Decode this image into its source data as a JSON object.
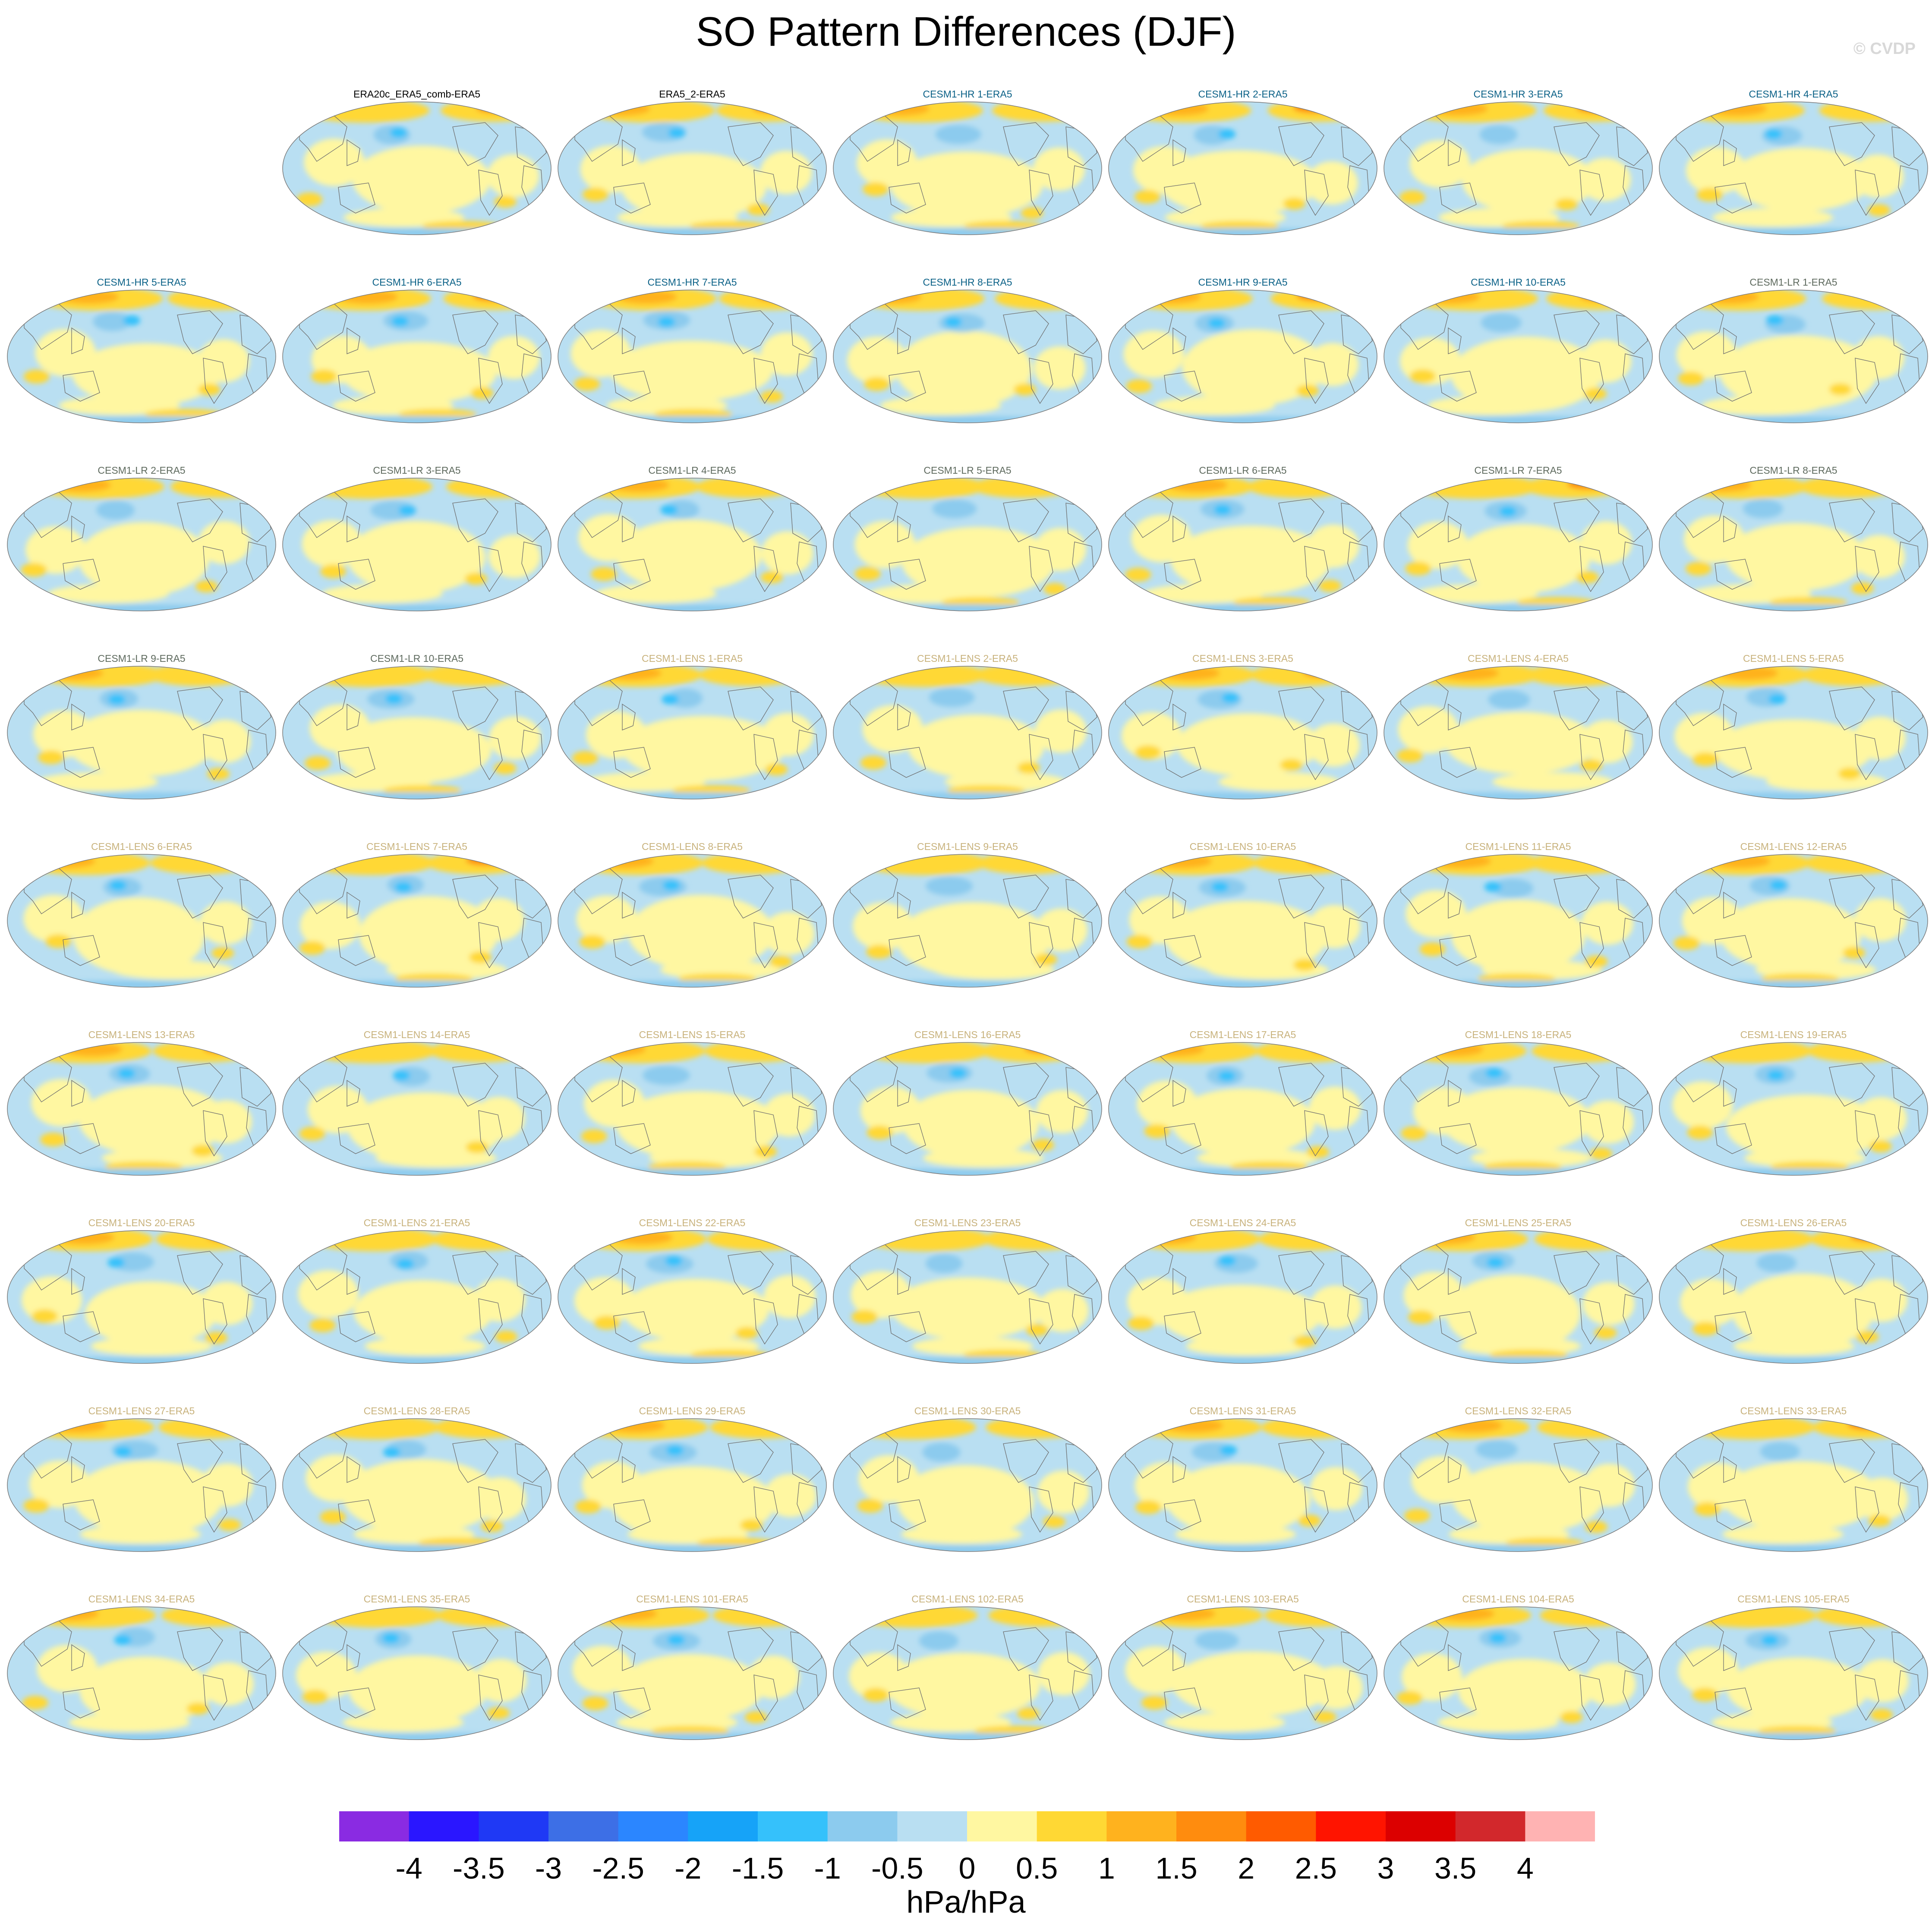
{
  "title": "SO Pattern Differences (DJF)",
  "watermark": "© CVDP",
  "units": "hPa/hPa",
  "colorbar": {
    "colors": [
      "#8a2be2",
      "#2a16ff",
      "#1f39f5",
      "#3d6fe6",
      "#2b86ff",
      "#16a3f8",
      "#35c1fb",
      "#8ccbee",
      "#b9dff2",
      "#fff7a1",
      "#ffd834",
      "#ffb21e",
      "#ff8c0e",
      "#ff5b00",
      "#ff1400",
      "#dc0000",
      "#d2282c",
      "#ffb3b3"
    ],
    "tick_labels": [
      "-4",
      "-3.5",
      "-3",
      "-2.5",
      "-2",
      "-1.5",
      "-1",
      "-0.5",
      "0",
      "0.5",
      "1",
      "1.5",
      "2",
      "2.5",
      "3",
      "3.5",
      "4"
    ]
  },
  "panels": [
    {
      "label": "ERA20c_ERA5_comb-ERA5",
      "group": "obs"
    },
    {
      "label": "ERA5_2-ERA5",
      "group": "obs"
    },
    {
      "label": "CESM1-HR 1-ERA5",
      "group": "hr"
    },
    {
      "label": "CESM1-HR 2-ERA5",
      "group": "hr"
    },
    {
      "label": "CESM1-HR 3-ERA5",
      "group": "hr"
    },
    {
      "label": "CESM1-HR 4-ERA5",
      "group": "hr"
    },
    {
      "label": "CESM1-HR 5-ERA5",
      "group": "hr"
    },
    {
      "label": "CESM1-HR 6-ERA5",
      "group": "hr"
    },
    {
      "label": "CESM1-HR 7-ERA5",
      "group": "hr"
    },
    {
      "label": "CESM1-HR 8-ERA5",
      "group": "hr"
    },
    {
      "label": "CESM1-HR 9-ERA5",
      "group": "hr"
    },
    {
      "label": "CESM1-HR 10-ERA5",
      "group": "hr"
    },
    {
      "label": "CESM1-LR 1-ERA5",
      "group": "lr"
    },
    {
      "label": "CESM1-LR 2-ERA5",
      "group": "lr"
    },
    {
      "label": "CESM1-LR 3-ERA5",
      "group": "lr"
    },
    {
      "label": "CESM1-LR 4-ERA5",
      "group": "lr"
    },
    {
      "label": "CESM1-LR 5-ERA5",
      "group": "lr"
    },
    {
      "label": "CESM1-LR 6-ERA5",
      "group": "lr"
    },
    {
      "label": "CESM1-LR 7-ERA5",
      "group": "lr"
    },
    {
      "label": "CESM1-LR 8-ERA5",
      "group": "lr"
    },
    {
      "label": "CESM1-LR 9-ERA5",
      "group": "lr"
    },
    {
      "label": "CESM1-LR 10-ERA5",
      "group": "lr"
    },
    {
      "label": "CESM1-LENS 1-ERA5",
      "group": "lens"
    },
    {
      "label": "CESM1-LENS 2-ERA5",
      "group": "lens"
    },
    {
      "label": "CESM1-LENS 3-ERA5",
      "group": "lens"
    },
    {
      "label": "CESM1-LENS 4-ERA5",
      "group": "lens"
    },
    {
      "label": "CESM1-LENS 5-ERA5",
      "group": "lens"
    },
    {
      "label": "CESM1-LENS 6-ERA5",
      "group": "lens"
    },
    {
      "label": "CESM1-LENS 7-ERA5",
      "group": "lens"
    },
    {
      "label": "CESM1-LENS 8-ERA5",
      "group": "lens"
    },
    {
      "label": "CESM1-LENS 9-ERA5",
      "group": "lens"
    },
    {
      "label": "CESM1-LENS 10-ERA5",
      "group": "lens"
    },
    {
      "label": "CESM1-LENS 11-ERA5",
      "group": "lens"
    },
    {
      "label": "CESM1-LENS 12-ERA5",
      "group": "lens"
    },
    {
      "label": "CESM1-LENS 13-ERA5",
      "group": "lens"
    },
    {
      "label": "CESM1-LENS 14-ERA5",
      "group": "lens"
    },
    {
      "label": "CESM1-LENS 15-ERA5",
      "group": "lens"
    },
    {
      "label": "CESM1-LENS 16-ERA5",
      "group": "lens"
    },
    {
      "label": "CESM1-LENS 17-ERA5",
      "group": "lens"
    },
    {
      "label": "CESM1-LENS 18-ERA5",
      "group": "lens"
    },
    {
      "label": "CESM1-LENS 19-ERA5",
      "group": "lens"
    },
    {
      "label": "CESM1-LENS 20-ERA5",
      "group": "lens"
    },
    {
      "label": "CESM1-LENS 21-ERA5",
      "group": "lens"
    },
    {
      "label": "CESM1-LENS 22-ERA5",
      "group": "lens"
    },
    {
      "label": "CESM1-LENS 23-ERA5",
      "group": "lens"
    },
    {
      "label": "CESM1-LENS 24-ERA5",
      "group": "lens"
    },
    {
      "label": "CESM1-LENS 25-ERA5",
      "group": "lens"
    },
    {
      "label": "CESM1-LENS 26-ERA5",
      "group": "lens"
    },
    {
      "label": "CESM1-LENS 27-ERA5",
      "group": "lens"
    },
    {
      "label": "CESM1-LENS 28-ERA5",
      "group": "lens"
    },
    {
      "label": "CESM1-LENS 29-ERA5",
      "group": "lens"
    },
    {
      "label": "CESM1-LENS 30-ERA5",
      "group": "lens"
    },
    {
      "label": "CESM1-LENS 31-ERA5",
      "group": "lens"
    },
    {
      "label": "CESM1-LENS 32-ERA5",
      "group": "lens"
    },
    {
      "label": "CESM1-LENS 33-ERA5",
      "group": "lens"
    },
    {
      "label": "CESM1-LENS 34-ERA5",
      "group": "lens"
    },
    {
      "label": "CESM1-LENS 35-ERA5",
      "group": "lens"
    },
    {
      "label": "CESM1-LENS 101-ERA5",
      "group": "lens"
    },
    {
      "label": "CESM1-LENS 102-ERA5",
      "group": "lens"
    },
    {
      "label": "CESM1-LENS 103-ERA5",
      "group": "lens"
    },
    {
      "label": "CESM1-LENS 104-ERA5",
      "group": "lens"
    },
    {
      "label": "CESM1-LENS 105-ERA5",
      "group": "lens"
    }
  ]
}
